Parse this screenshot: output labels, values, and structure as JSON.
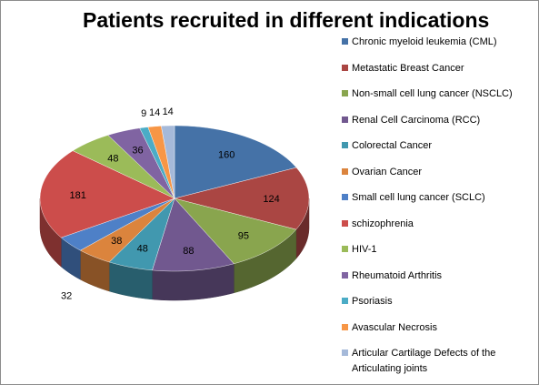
{
  "title": "Patients recruited in different indications",
  "colors": {
    "background": "#ffffff",
    "border": "#8c8c8c"
  },
  "chart_data": {
    "type": "pie",
    "title": "Patients recruited in different indications",
    "style": "3d-exploded-tilted",
    "legend_position": "right",
    "series": [
      {
        "name": "Chronic myeloid leukemia (CML)",
        "value": 160,
        "color": "#4572a7"
      },
      {
        "name": "Metastatic Breast Cancer",
        "value": 124,
        "color": "#aa4643"
      },
      {
        "name": "Non-small cell lung cancer (NSCLC)",
        "value": 95,
        "color": "#89a54e"
      },
      {
        "name": "Renal Cell  Carcinoma (RCC)",
        "value": 88,
        "color": "#71588f"
      },
      {
        "name": "Colorectal Cancer",
        "value": 48,
        "color": "#4198af"
      },
      {
        "name": "Ovarian Cancer",
        "value": 38,
        "color": "#db843d"
      },
      {
        "name": "Small cell lung cancer (SCLC)",
        "value": 32,
        "color": "#4e80c7"
      },
      {
        "name": "schizophrenia",
        "value": 181,
        "color": "#cc4d4b"
      },
      {
        "name": "HIV-1",
        "value": 48,
        "color": "#9bbb59"
      },
      {
        "name": "Rheumatoid Arthritis",
        "value": 36,
        "color": "#8064a2"
      },
      {
        "name": "Psoriasis",
        "value": 9,
        "color": "#4bacc6"
      },
      {
        "name": "Avascular Necrosis",
        "value": 14,
        "color": "#f79646"
      },
      {
        "name": "Articular Cartilage Defects of the Articulating joints",
        "value": 14,
        "color": "#a5b9d9"
      }
    ]
  }
}
